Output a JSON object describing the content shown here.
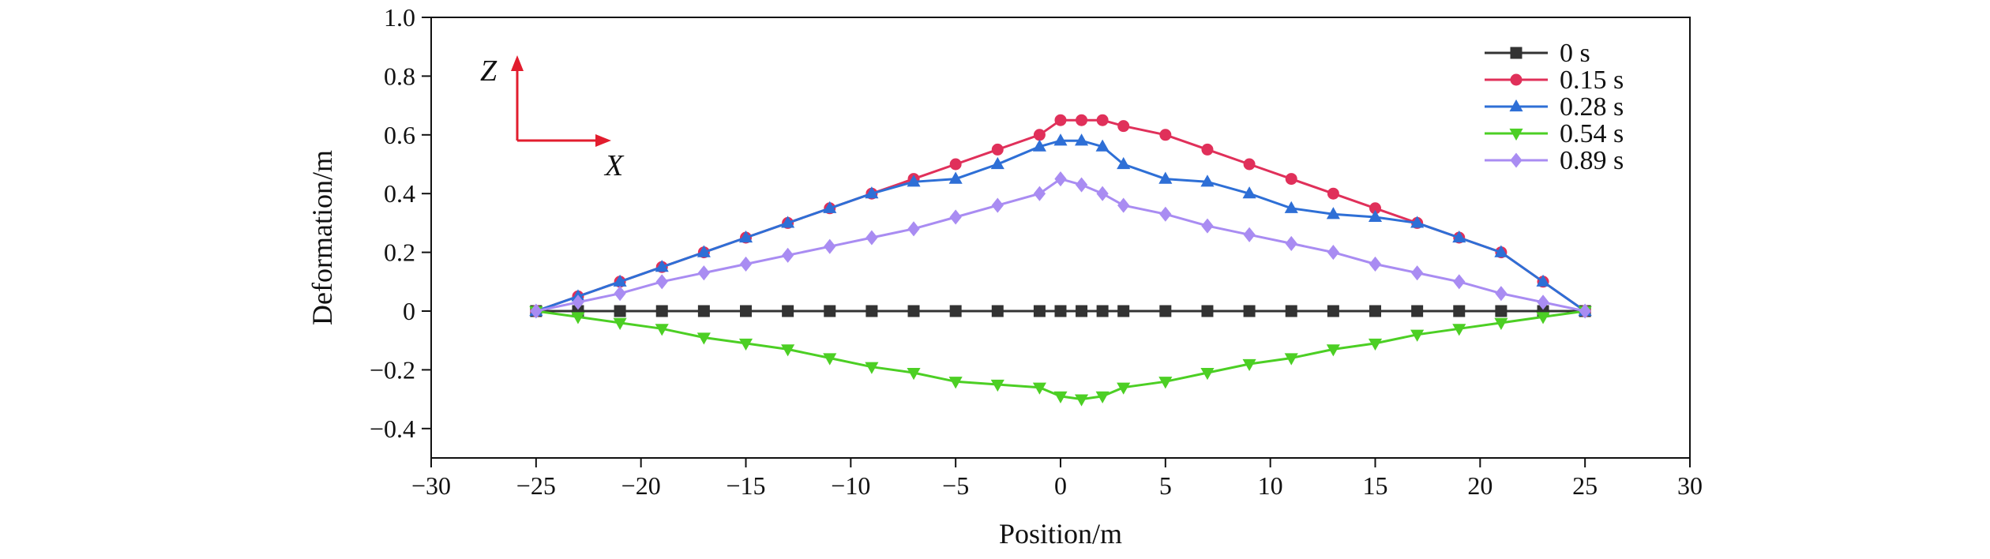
{
  "chart_data": {
    "type": "line",
    "xlabel": "Position/m",
    "ylabel": "Deformation/m",
    "xlim": [
      -30,
      30
    ],
    "ylim": [
      -0.5,
      1.0
    ],
    "x_ticks": [
      -30,
      -25,
      -20,
      -15,
      -10,
      -5,
      0,
      5,
      10,
      15,
      20,
      25,
      30
    ],
    "y_ticks": [
      -0.4,
      -0.2,
      0,
      0.2,
      0.4,
      0.6,
      0.8,
      1.0
    ],
    "x_tick_labels": [
      "−30",
      "−25",
      "−20",
      "−15",
      "−10",
      "−5",
      "0",
      "5",
      "10",
      "15",
      "20",
      "25",
      "30"
    ],
    "y_tick_labels": [
      "−0.4",
      "−0.2",
      "0",
      "0.2",
      "0.4",
      "0.6",
      "0.8",
      "1.0"
    ],
    "grid": false,
    "legend_position": "top-right",
    "inset_axes": {
      "vertical_label": "Z",
      "horizontal_label": "X"
    },
    "series": [
      {
        "name": "0 s",
        "color": "#333333",
        "marker": "square",
        "x": [
          -25,
          -23,
          -21,
          -19,
          -17,
          -15,
          -13,
          -11,
          -9,
          -7,
          -5,
          -3,
          -1,
          0,
          1,
          2,
          3,
          5,
          7,
          9,
          11,
          13,
          15,
          17,
          19,
          21,
          23,
          25
        ],
        "y": [
          0,
          0,
          0,
          0,
          0,
          0,
          0,
          0,
          0,
          0,
          0,
          0,
          0,
          0,
          0,
          0,
          0,
          0,
          0,
          0,
          0,
          0,
          0,
          0,
          0,
          0,
          0,
          0
        ]
      },
      {
        "name": "0.15 s",
        "color": "#e0305a",
        "marker": "circle",
        "x": [
          -25,
          -23,
          -21,
          -19,
          -17,
          -15,
          -13,
          -11,
          -9,
          -7,
          -5,
          -3,
          -1,
          0,
          1,
          2,
          3,
          5,
          7,
          9,
          11,
          13,
          15,
          17,
          19,
          21,
          23,
          25
        ],
        "y": [
          0,
          0.05,
          0.1,
          0.15,
          0.2,
          0.25,
          0.3,
          0.35,
          0.4,
          0.45,
          0.5,
          0.55,
          0.6,
          0.65,
          0.65,
          0.65,
          0.63,
          0.6,
          0.55,
          0.5,
          0.45,
          0.4,
          0.35,
          0.3,
          0.25,
          0.2,
          0.1,
          0
        ]
      },
      {
        "name": "0.28 s",
        "color": "#2e6fd6",
        "marker": "triangle-up",
        "x": [
          -25,
          -23,
          -21,
          -19,
          -17,
          -15,
          -13,
          -11,
          -9,
          -7,
          -5,
          -3,
          -1,
          0,
          1,
          2,
          3,
          5,
          7,
          9,
          11,
          13,
          15,
          17,
          19,
          21,
          23,
          25
        ],
        "y": [
          0,
          0.05,
          0.1,
          0.15,
          0.2,
          0.25,
          0.3,
          0.35,
          0.4,
          0.44,
          0.45,
          0.5,
          0.56,
          0.58,
          0.58,
          0.56,
          0.5,
          0.45,
          0.44,
          0.4,
          0.35,
          0.33,
          0.32,
          0.3,
          0.25,
          0.2,
          0.1,
          0
        ]
      },
      {
        "name": "0.54 s",
        "color": "#4ccf24",
        "marker": "triangle-down",
        "x": [
          -25,
          -23,
          -21,
          -19,
          -17,
          -15,
          -13,
          -11,
          -9,
          -7,
          -5,
          -3,
          -1,
          0,
          1,
          2,
          3,
          5,
          7,
          9,
          11,
          13,
          15,
          17,
          19,
          21,
          23,
          25
        ],
        "y": [
          0,
          -0.02,
          -0.04,
          -0.06,
          -0.09,
          -0.11,
          -0.13,
          -0.16,
          -0.19,
          -0.21,
          -0.24,
          -0.25,
          -0.26,
          -0.29,
          -0.3,
          -0.29,
          -0.26,
          -0.24,
          -0.21,
          -0.18,
          -0.16,
          -0.13,
          -0.11,
          -0.08,
          -0.06,
          -0.04,
          -0.02,
          0
        ]
      },
      {
        "name": "0.89 s",
        "color": "#a98cf2",
        "marker": "diamond",
        "x": [
          -25,
          -23,
          -21,
          -19,
          -17,
          -15,
          -13,
          -11,
          -9,
          -7,
          -5,
          -3,
          -1,
          0,
          1,
          2,
          3,
          5,
          7,
          9,
          11,
          13,
          15,
          17,
          19,
          21,
          23,
          25
        ],
        "y": [
          0,
          0.03,
          0.06,
          0.1,
          0.13,
          0.16,
          0.19,
          0.22,
          0.25,
          0.28,
          0.32,
          0.36,
          0.4,
          0.45,
          0.43,
          0.4,
          0.36,
          0.33,
          0.29,
          0.26,
          0.23,
          0.2,
          0.16,
          0.13,
          0.1,
          0.06,
          0.03,
          0
        ]
      }
    ]
  }
}
